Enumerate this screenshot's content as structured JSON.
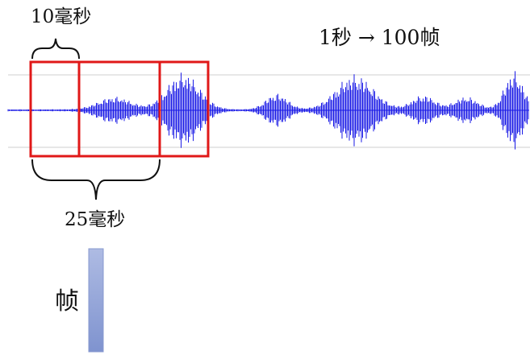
{
  "labels": {
    "hop": "10毫秒",
    "window": "25毫秒",
    "rate": "1秒 → 100帧",
    "frame": "帧"
  },
  "colors": {
    "waveform": "#1a1ae6",
    "window_box": "#e01818",
    "frame_bar_top": "#aebbe3",
    "frame_bar_bottom": "#7f93cf",
    "guide_line": "#cfcfcf",
    "brace": "#111111"
  },
  "diagram": {
    "description_type": "speech-framing",
    "hop_ms": 10,
    "window_ms": 25,
    "frames_per_second": 100,
    "frame_windows_shown": 3
  }
}
